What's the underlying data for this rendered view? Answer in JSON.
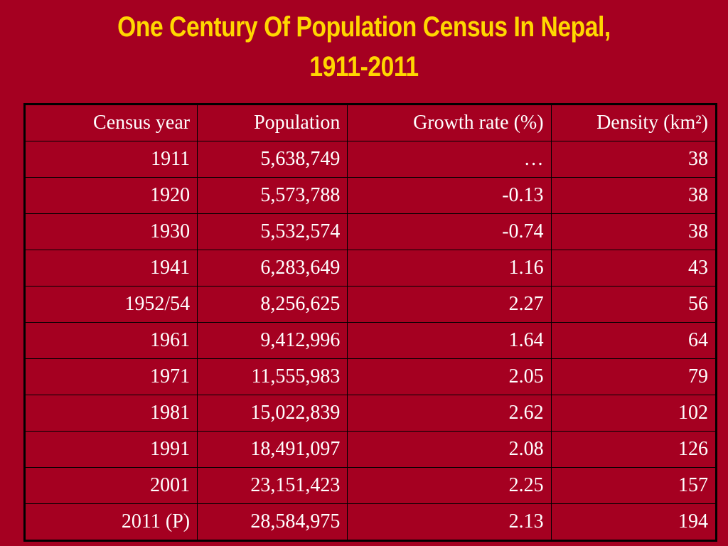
{
  "title": {
    "line1": "One Century Of Population Census In Nepal,",
    "line2": "1911-2011"
  },
  "table": {
    "headers": [
      "Census year",
      "Population",
      "Growth rate (%)",
      "Density (km²)"
    ],
    "rows": [
      [
        "1911",
        "5,638,749",
        "…",
        "38"
      ],
      [
        "1920",
        "5,573,788",
        "-0.13",
        "38"
      ],
      [
        "1930",
        "5,532,574",
        "-0.74",
        "38"
      ],
      [
        "1941",
        "6,283,649",
        "1.16",
        "43"
      ],
      [
        "1952/54",
        "8,256,625",
        "2.27",
        "56"
      ],
      [
        "1961",
        "9,412,996",
        "1.64",
        "64"
      ],
      [
        "1971",
        "11,555,983",
        "2.05",
        "79"
      ],
      [
        "1981",
        "15,022,839",
        "2.62",
        "102"
      ],
      [
        "1991",
        "18,491,097",
        "2.08",
        "126"
      ],
      [
        "2001",
        "23,151,423",
        "2.25",
        "157"
      ],
      [
        "2011 (P)",
        "28,584,975",
        "2.13",
        "194"
      ]
    ]
  },
  "colors": {
    "background": "#a50021",
    "title": "#ffd700",
    "text": "#ffffff",
    "border": "#000000"
  }
}
